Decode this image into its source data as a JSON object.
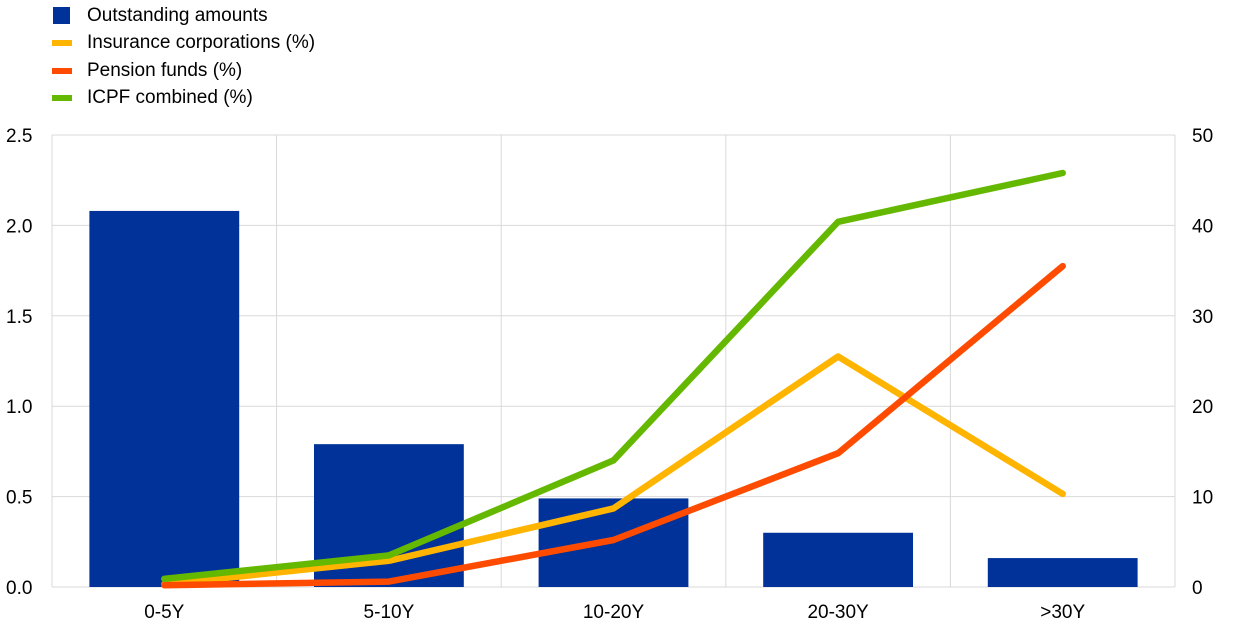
{
  "chart_data": {
    "type": "bar",
    "title": "",
    "xlabel": "",
    "ylabel": "",
    "categories": [
      "0-5Y",
      "5-10Y",
      "10-20Y",
      "20-30Y",
      ">30Y"
    ],
    "bar_series": {
      "name": "Outstanding amounts",
      "axis": "left",
      "color": "#003299",
      "values": [
        2.08,
        0.79,
        0.49,
        0.3,
        0.16
      ]
    },
    "line_series": [
      {
        "name": "Insurance corporations (%)",
        "axis": "right",
        "color": "#FFB400",
        "values": [
          0.3,
          2.9,
          8.7,
          25.5,
          10.3
        ]
      },
      {
        "name": "Pension funds (%)",
        "axis": "right",
        "color": "#FF4B00",
        "values": [
          0.2,
          0.6,
          5.2,
          14.8,
          35.5
        ]
      },
      {
        "name": "ICPF combined (%)",
        "axis": "right",
        "color": "#65B800",
        "values": [
          0.9,
          3.5,
          14.0,
          40.4,
          45.8
        ]
      }
    ],
    "y_left": {
      "min": 0,
      "max": 2.5,
      "ticks": [
        "0.0",
        "0.5",
        "1.0",
        "1.5",
        "2.0",
        "2.5"
      ]
    },
    "y_right": {
      "min": 0,
      "max": 50,
      "ticks": [
        "0",
        "10",
        "20",
        "30",
        "40",
        "50"
      ]
    },
    "grid": true,
    "legend_position": "top-left"
  }
}
